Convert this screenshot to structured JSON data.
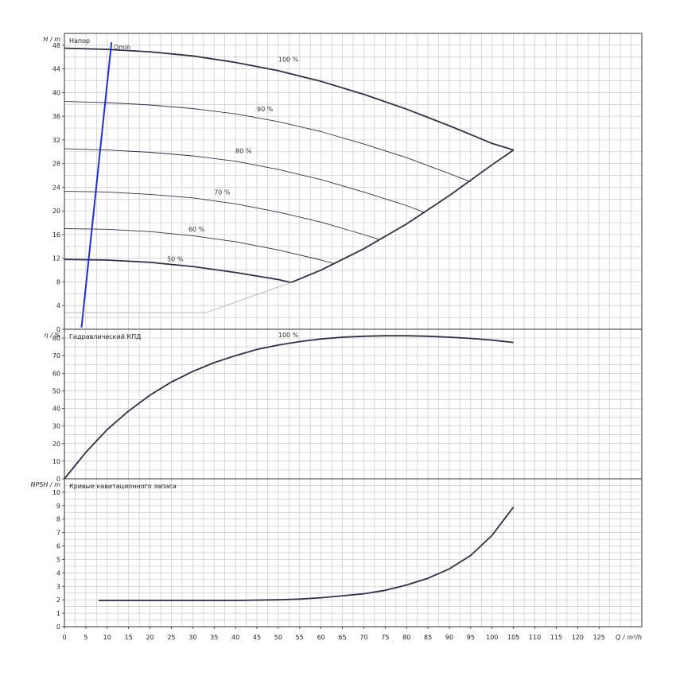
{
  "chart_data": [
    {
      "type": "line",
      "title": "Напор",
      "ylabel": "H / m",
      "xlim": [
        0,
        135
      ],
      "ylim": [
        0,
        50
      ],
      "y_ticks": [
        0,
        4,
        8,
        12,
        16,
        20,
        24,
        28,
        32,
        36,
        40,
        44,
        48
      ],
      "grid": true,
      "series": [
        {
          "name": "100 %",
          "label_at": [
            50,
            45.2
          ],
          "x": [
            0,
            10,
            20,
            30,
            40,
            50,
            60,
            70,
            80,
            90,
            95,
            100,
            105
          ],
          "y": [
            47.5,
            47.3,
            46.9,
            46.2,
            45.1,
            43.7,
            41.9,
            39.7,
            37.2,
            34.4,
            32.9,
            31.4,
            30.3
          ]
        },
        {
          "name": "90 %",
          "label_at": [
            45,
            36.8
          ],
          "x": [
            0,
            10,
            20,
            30,
            40,
            50,
            60,
            70,
            80,
            90,
            95
          ],
          "y": [
            38.5,
            38.3,
            37.9,
            37.3,
            36.4,
            35.1,
            33.4,
            31.3,
            29.0,
            26.3,
            24.9
          ]
        },
        {
          "name": "80 %",
          "label_at": [
            40,
            29.8
          ],
          "x": [
            0,
            10,
            20,
            30,
            40,
            50,
            60,
            70,
            80,
            84
          ],
          "y": [
            30.5,
            30.3,
            29.9,
            29.3,
            28.4,
            27.0,
            25.3,
            23.2,
            20.9,
            19.8
          ]
        },
        {
          "name": "70 %",
          "label_at": [
            35,
            22.8
          ],
          "x": [
            0,
            10,
            20,
            30,
            40,
            50,
            60,
            70,
            73.5
          ],
          "y": [
            23.3,
            23.2,
            22.8,
            22.2,
            21.2,
            19.8,
            18.1,
            16.0,
            15.2
          ]
        },
        {
          "name": "60 %",
          "label_at": [
            29,
            16.5
          ],
          "x": [
            0,
            10,
            20,
            30,
            40,
            50,
            60,
            63
          ],
          "y": [
            17.0,
            16.9,
            16.5,
            15.8,
            14.8,
            13.4,
            11.7,
            11.1
          ]
        },
        {
          "name": "50 %",
          "label_at": [
            24,
            11.5
          ],
          "x": [
            0,
            10,
            20,
            30,
            40,
            50,
            53
          ],
          "y": [
            11.8,
            11.7,
            11.3,
            10.6,
            9.6,
            8.4,
            7.9
          ]
        },
        {
          "name": "",
          "role": "max-speed-limit",
          "x": [
            53,
            60,
            70,
            80,
            90,
            100,
            105
          ],
          "y": [
            7.9,
            10.0,
            13.6,
            17.8,
            22.6,
            27.8,
            30.3
          ]
        },
        {
          "name": "Qmin",
          "role": "qmin",
          "label_at": [
            11.5,
            47.3
          ],
          "x": [
            4,
            11
          ],
          "y": [
            0.3,
            48.5
          ]
        },
        {
          "name": "",
          "role": "minimum-limit",
          "x": [
            0,
            33,
            53
          ],
          "y": [
            2.8,
            2.8,
            7.9
          ]
        }
      ]
    },
    {
      "type": "line",
      "title": "Гидравлический КПД",
      "ylabel": "η / %",
      "xlim": [
        0,
        135
      ],
      "ylim": [
        0,
        85
      ],
      "y_ticks": [
        0,
        10,
        20,
        30,
        40,
        50,
        60,
        70,
        80
      ],
      "grid": true,
      "series": [
        {
          "name": "100 %",
          "label_at": [
            50,
            80.5
          ],
          "x": [
            0,
            5,
            10,
            15,
            20,
            25,
            30,
            35,
            40,
            45,
            50,
            55,
            60,
            65,
            70,
            75,
            80,
            85,
            90,
            95,
            100,
            105
          ],
          "y": [
            0,
            15,
            28,
            38.5,
            47.5,
            55,
            61,
            66,
            70,
            73.5,
            76,
            78,
            79.5,
            80.5,
            81,
            81.3,
            81.3,
            81,
            80.5,
            79.8,
            78.8,
            77.5
          ]
        }
      ]
    },
    {
      "type": "line",
      "title": "Кривые кавитационного запаса",
      "ylabel": "NPSH / m",
      "xlabel": "Q / m³/h",
      "xlim": [
        0,
        135
      ],
      "ylim": [
        0,
        11
      ],
      "y_ticks": [
        0,
        1,
        2,
        3,
        4,
        5,
        6,
        7,
        8,
        9,
        10
      ],
      "x_ticks": [
        0,
        5,
        10,
        15,
        20,
        25,
        30,
        35,
        40,
        45,
        50,
        55,
        60,
        65,
        70,
        75,
        80,
        85,
        90,
        95,
        100,
        105,
        110,
        115,
        120,
        125
      ],
      "grid": true,
      "series": [
        {
          "name": "",
          "x": [
            8,
            20,
            30,
            40,
            50,
            55,
            60,
            65,
            70,
            75,
            80,
            85,
            90,
            95,
            100,
            105
          ],
          "y": [
            1.95,
            1.95,
            1.95,
            1.95,
            2.0,
            2.05,
            2.15,
            2.3,
            2.45,
            2.7,
            3.1,
            3.6,
            4.3,
            5.3,
            6.8,
            8.9
          ]
        }
      ]
    }
  ]
}
